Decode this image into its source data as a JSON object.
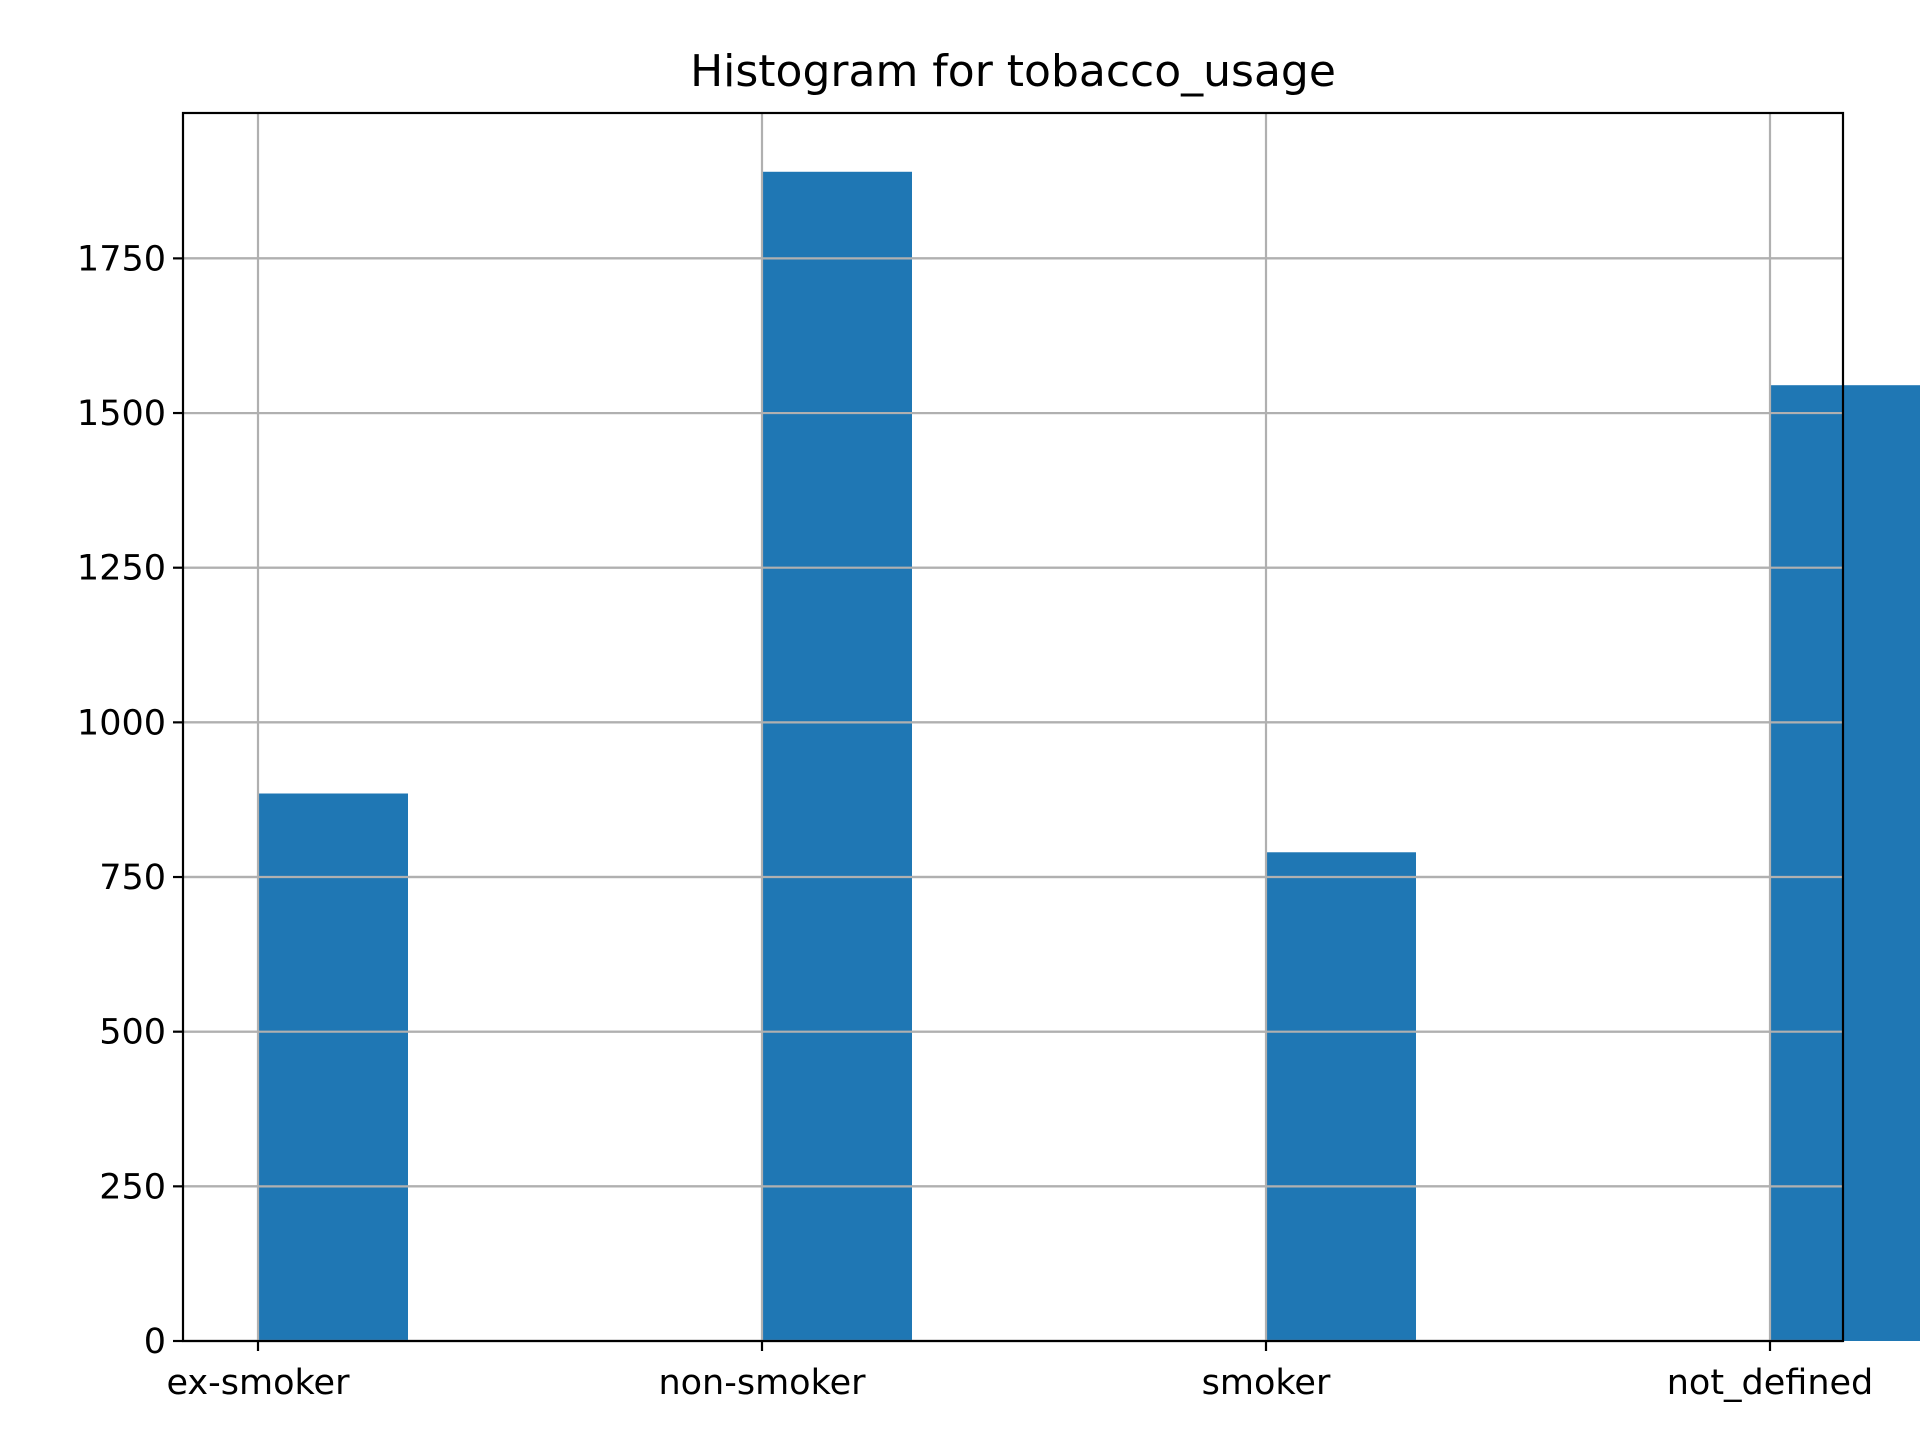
{
  "chart_data": {
    "type": "bar",
    "title": "Histogram for tobacco_usage",
    "categories": [
      "ex-smoker",
      "non-smoker",
      "smoker",
      "not_defined"
    ],
    "values": [
      885,
      1890,
      790,
      1545
    ],
    "xlabel": "",
    "ylabel": "",
    "ylim": [
      0,
      1985
    ],
    "yticks": [
      0,
      250,
      500,
      750,
      1000,
      1250,
      1500,
      1750
    ],
    "grid": true,
    "legend": "none",
    "bar_color": "#1f77b4"
  }
}
